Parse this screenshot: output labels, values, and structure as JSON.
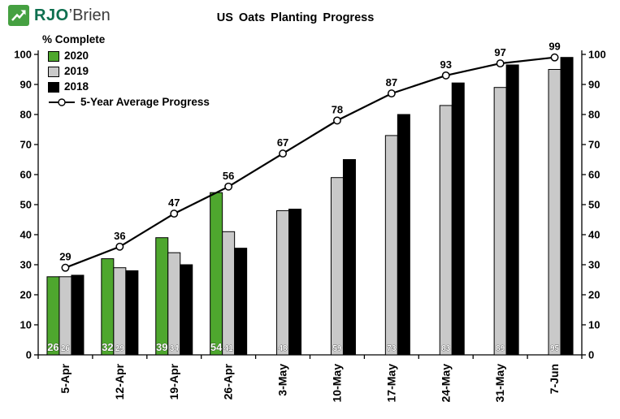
{
  "logo": {
    "primary": "RJO",
    "secondary": "’Brien",
    "icon_color": "#45A041",
    "text_color": "#0E6F4F"
  },
  "chart_data": {
    "type": "bar",
    "title": "US Oats Planting Progress",
    "ylabel": "% Complete",
    "ylim": [
      0,
      100
    ],
    "ytick_step": 10,
    "grid": false,
    "legend_position": "top-left-inside",
    "categories": [
      "5-Apr",
      "12-Apr",
      "19-Apr",
      "26-Apr",
      "3-May",
      "10-May",
      "17-May",
      "24-May",
      "31-May",
      "7-Jun"
    ],
    "series": [
      {
        "name": "2020",
        "type": "bar",
        "color": "#4EA72E",
        "data_labels": "inside-base",
        "label_color": "#FFFFFF",
        "label_size": 13,
        "values": [
          26,
          32,
          39,
          54,
          null,
          null,
          null,
          null,
          null,
          null
        ]
      },
      {
        "name": "2019",
        "type": "bar",
        "color": "#C9C9C9",
        "data_labels": "inside-base",
        "label_color": "#FFFFFF",
        "label_size": 10,
        "values": [
          26,
          29,
          34,
          41,
          48,
          59,
          73,
          83,
          89,
          95
        ]
      },
      {
        "name": "2018",
        "type": "bar",
        "color": "#000000",
        "data_labels": "none",
        "values": [
          26.5,
          28,
          30,
          35.5,
          48.5,
          65,
          80,
          90.5,
          96.5,
          99
        ]
      },
      {
        "name": "5-Year Average Progress",
        "type": "line",
        "color": "#000000",
        "marker": "open-circle",
        "data_labels": "above",
        "label_color": "#000000",
        "label_size": 13,
        "values": [
          29,
          36,
          47,
          56,
          67,
          78,
          87,
          93,
          97,
          99
        ]
      }
    ]
  }
}
